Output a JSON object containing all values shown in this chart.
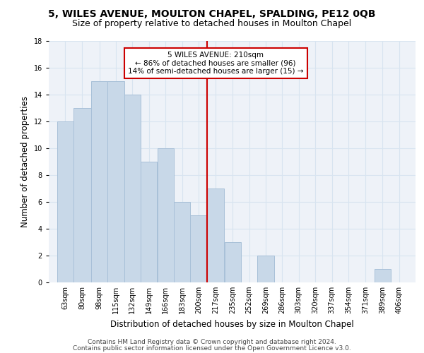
{
  "title1": "5, WILES AVENUE, MOULTON CHAPEL, SPALDING, PE12 0QB",
  "title2": "Size of property relative to detached houses in Moulton Chapel",
  "xlabel": "Distribution of detached houses by size in Moulton Chapel",
  "ylabel": "Number of detached properties",
  "categories": [
    "63sqm",
    "80sqm",
    "98sqm",
    "115sqm",
    "132sqm",
    "149sqm",
    "166sqm",
    "183sqm",
    "200sqm",
    "217sqm",
    "235sqm",
    "252sqm",
    "269sqm",
    "286sqm",
    "303sqm",
    "320sqm",
    "337sqm",
    "354sqm",
    "371sqm",
    "389sqm",
    "406sqm"
  ],
  "values": [
    12,
    13,
    15,
    15,
    14,
    9,
    10,
    6,
    5,
    7,
    3,
    0,
    2,
    0,
    0,
    0,
    0,
    0,
    0,
    1,
    0
  ],
  "bar_color": "#c8d8e8",
  "bar_edge_color": "#a8c0d8",
  "grid_color": "#d8e4f0",
  "background_color": "#eef2f8",
  "bin_edges": [
    63,
    80,
    98,
    115,
    132,
    149,
    166,
    183,
    200,
    217,
    235,
    252,
    269,
    286,
    303,
    320,
    337,
    354,
    371,
    389,
    406,
    423
  ],
  "annotation_text": "5 WILES AVENUE: 210sqm\n← 86% of detached houses are smaller (96)\n14% of semi-detached houses are larger (15) →",
  "annotation_box_color": "#ffffff",
  "annotation_box_edge_color": "#cc0000",
  "footer1": "Contains HM Land Registry data © Crown copyright and database right 2024.",
  "footer2": "Contains public sector information licensed under the Open Government Licence v3.0.",
  "ylim": [
    0,
    18
  ],
  "yticks": [
    0,
    2,
    4,
    6,
    8,
    10,
    12,
    14,
    16,
    18
  ],
  "vline_color": "#cc0000",
  "title1_fontsize": 10,
  "title2_fontsize": 9,
  "xlabel_fontsize": 8.5,
  "ylabel_fontsize": 8.5,
  "tick_fontsize": 7,
  "annotation_fontsize": 7.5,
  "footer_fontsize": 6.5
}
